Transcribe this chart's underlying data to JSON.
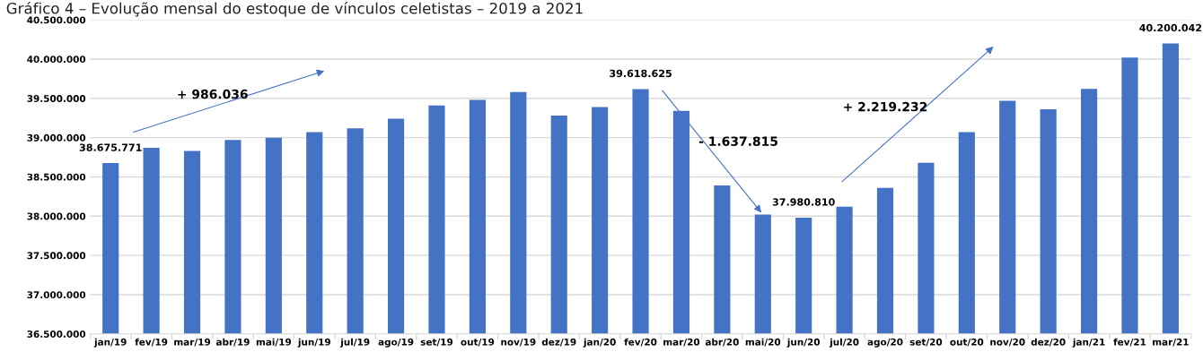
{
  "chart_data": {
    "type": "bar",
    "title": "Gráfico 4 – Evolução mensal do estoque de vínculos celetistas – 2019 a 2021",
    "categories": [
      "jan/19",
      "fev/19",
      "mar/19",
      "abr/19",
      "mai/19",
      "jun/19",
      "jul/19",
      "ago/19",
      "set/19",
      "out/19",
      "nov/19",
      "dez/19",
      "jan/20",
      "fev/20",
      "mar/20",
      "abr/20",
      "mai/20",
      "jun/20",
      "jul/20",
      "ago/20",
      "set/20",
      "out/20",
      "nov/20",
      "dez/20",
      "jan/21",
      "fev/21",
      "mar/21"
    ],
    "values": [
      38675771,
      38870000,
      38830000,
      38970000,
      39000000,
      39070000,
      39120000,
      39240000,
      39410000,
      39480000,
      39580000,
      39280000,
      39390000,
      39618625,
      39340000,
      38390000,
      38020000,
      37980810,
      38120000,
      38360000,
      38680000,
      39070000,
      39470000,
      39360000,
      39620000,
      40020000,
      40200042
    ],
    "value_labels": [
      "38.675.771",
      null,
      null,
      null,
      null,
      null,
      null,
      null,
      null,
      null,
      null,
      null,
      null,
      "39.618.625",
      null,
      null,
      null,
      "37.980.810",
      null,
      null,
      null,
      null,
      null,
      null,
      null,
      null,
      "40.200.042"
    ],
    "color": "#4472c4",
    "ylim": [
      36500000,
      40500000
    ],
    "yticks": [
      {
        "value": 36500000,
        "label": "36.500.000"
      },
      {
        "value": 37000000,
        "label": "37.000.000"
      },
      {
        "value": 37500000,
        "label": "37.500.000"
      },
      {
        "value": 38000000,
        "label": "38.000.000"
      },
      {
        "value": 38500000,
        "label": "38.500.000"
      },
      {
        "value": 39000000,
        "label": "39.000.000"
      },
      {
        "value": 39500000,
        "label": "39.500.000"
      },
      {
        "value": 40000000,
        "label": "40.000.000"
      },
      {
        "value": 40500000,
        "label": "40.500.000"
      }
    ],
    "grid": "y",
    "annotations": [
      "+ 986.036",
      "- 1.637.815",
      "+ 2.219.232"
    ]
  }
}
